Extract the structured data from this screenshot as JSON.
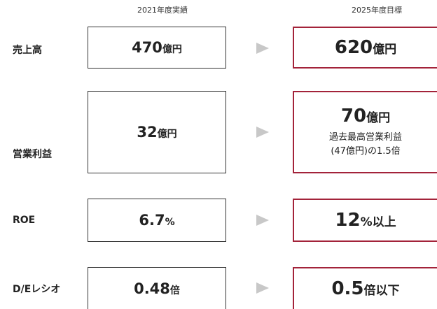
{
  "headers": [
    "2021年度実績",
    "2025年度目標"
  ],
  "rows": [
    {
      "label": "売上高",
      "actual": {
        "value": 470,
        "unit": "億円"
      },
      "target": {
        "value": 620,
        "unit": "億円"
      }
    },
    {
      "label": "営業利益",
      "actual": {
        "value": 32,
        "unit": "億円"
      },
      "target": {
        "value": 70,
        "unit": "億円",
        "note": [
          "過去最高営業利益",
          "(47億円)の1.5倍"
        ]
      }
    },
    {
      "label": "ROE",
      "actual": {
        "value": 6.7,
        "unit": "%"
      },
      "target": {
        "value": 12,
        "unit": "%以上"
      }
    },
    {
      "label": "D/Eレシオ",
      "actual": {
        "value": 0.48,
        "unit": "倍"
      },
      "target": {
        "value": 0.5,
        "unit": "倍以下"
      }
    }
  ]
}
